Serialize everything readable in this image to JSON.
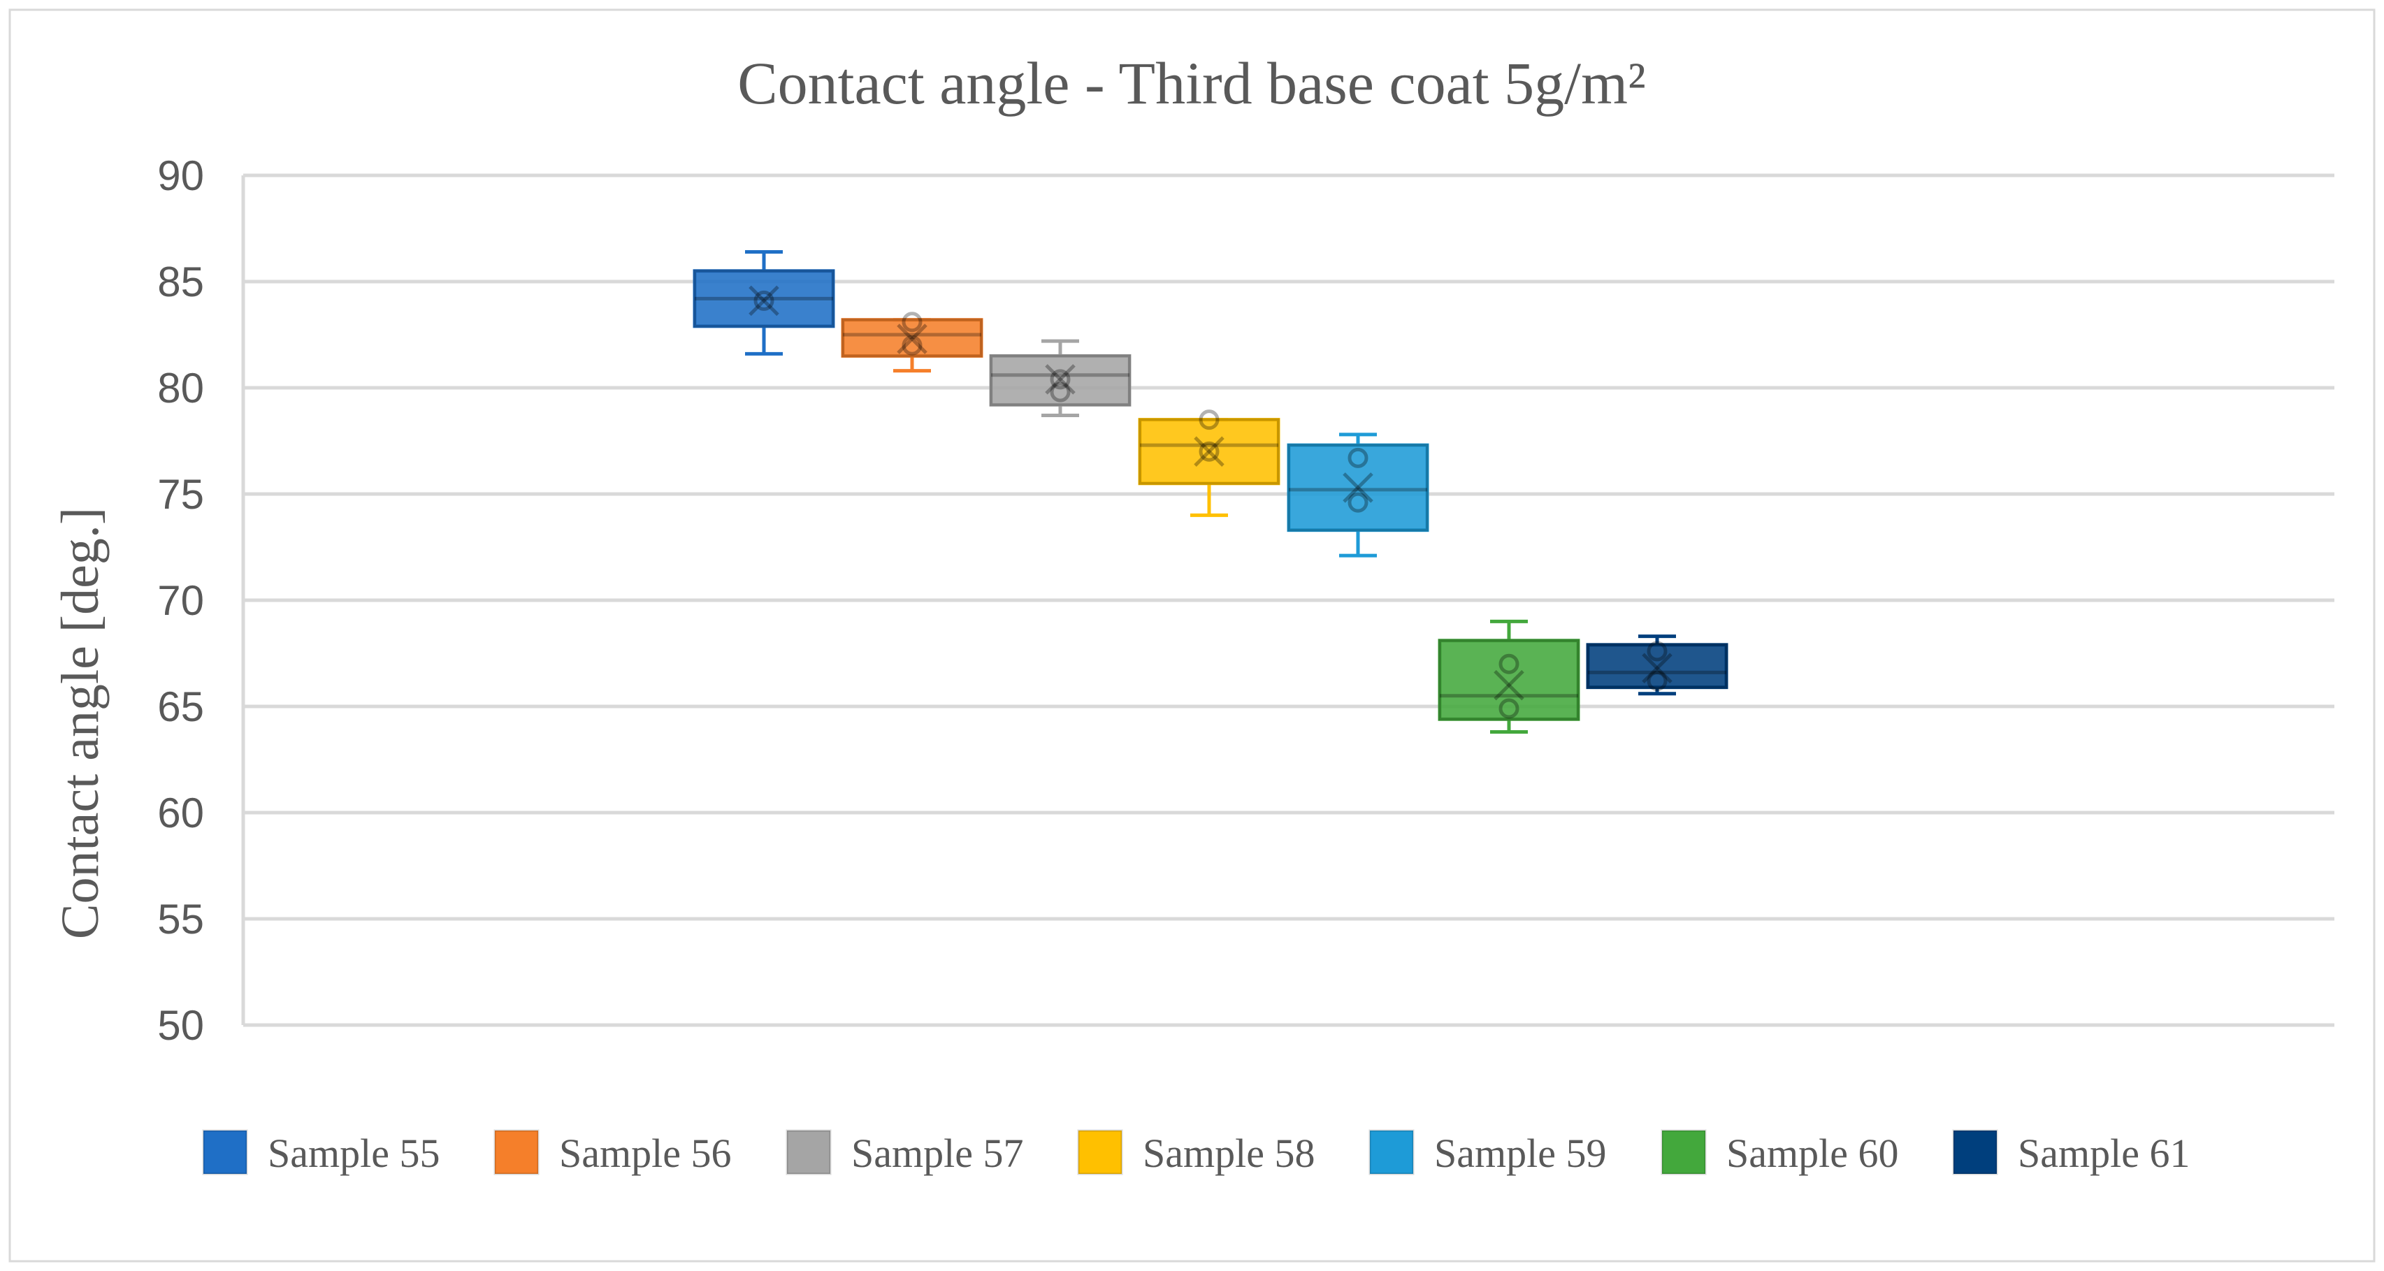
{
  "chart_data": {
    "type": "box",
    "title": "Contact angle - Third base coat 5g/m²",
    "xlabel": "",
    "ylabel": "Contact angle [deg.]",
    "ylim": [
      50,
      90
    ],
    "yticks": [
      "50",
      "55",
      "60",
      "65",
      "70",
      "75",
      "80",
      "85",
      "90"
    ],
    "grid": true,
    "legend_position": "bottom",
    "series": [
      {
        "name": "Sample 55",
        "color": "#1f6fc6",
        "min": 81.6,
        "q1": 82.9,
        "median": 84.2,
        "q3": 85.5,
        "max": 86.4,
        "mean": 84.1,
        "points": [
          84.1
        ]
      },
      {
        "name": "Sample 56",
        "color": "#f57f2a",
        "min": 80.8,
        "q1": 81.5,
        "median": 82.5,
        "q3": 83.2,
        "max": 83.2,
        "mean": 82.3,
        "points": [
          83.1,
          82.0
        ]
      },
      {
        "name": "Sample 57",
        "color": "#a5a5a5",
        "min": 78.7,
        "q1": 79.2,
        "median": 80.6,
        "q3": 81.5,
        "max": 82.2,
        "mean": 80.4,
        "points": [
          80.4,
          79.8
        ]
      },
      {
        "name": "Sample 58",
        "color": "#ffc000",
        "min": 74.0,
        "q1": 75.5,
        "median": 77.3,
        "q3": 78.5,
        "max": 78.5,
        "mean": 77.0,
        "points": [
          78.5,
          77.0
        ]
      },
      {
        "name": "Sample 59",
        "color": "#1e9bd7",
        "min": 72.1,
        "q1": 73.3,
        "median": 75.2,
        "q3": 77.3,
        "max": 77.8,
        "mean": 75.3,
        "points": [
          76.7,
          74.6
        ]
      },
      {
        "name": "Sample 60",
        "color": "#43a83c",
        "min": 63.8,
        "q1": 64.4,
        "median": 65.5,
        "q3": 68.1,
        "max": 69.0,
        "mean": 66.0,
        "points": [
          67.0,
          64.9
        ]
      },
      {
        "name": "Sample 61",
        "color": "#003f7d",
        "min": 65.6,
        "q1": 65.9,
        "median": 66.6,
        "q3": 67.9,
        "max": 68.3,
        "mean": 66.8,
        "points": [
          67.6,
          66.2
        ]
      }
    ]
  }
}
